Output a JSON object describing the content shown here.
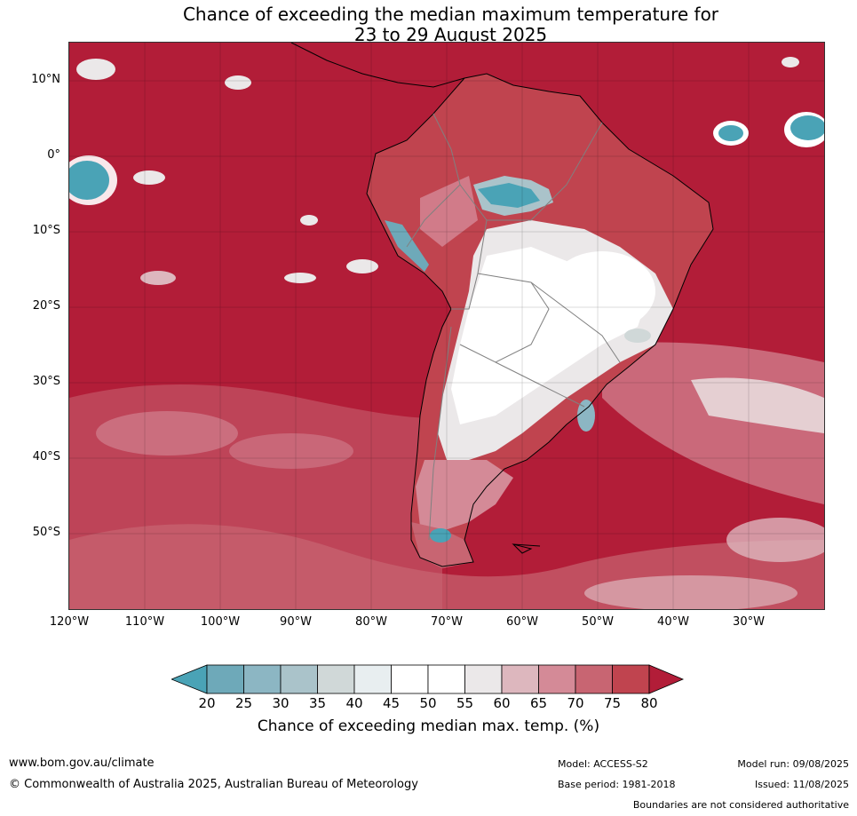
{
  "title": {
    "line1": "Chance of exceeding the median maximum temperature for",
    "line2": "23 to 29 August 2025"
  },
  "map": {
    "lat_labels": [
      "10°N",
      "0°",
      "10°S",
      "20°S",
      "30°S",
      "40°S",
      "50°S"
    ],
    "lon_labels": [
      "120°W",
      "110°W",
      "100°W",
      "90°W",
      "80°W",
      "70°W",
      "60°W",
      "50°W",
      "40°W",
      "30°W"
    ],
    "background_color": "#b21d38",
    "land_outline_color": "#000000",
    "border_color": "#808080"
  },
  "colorbar": {
    "ticks": [
      "20",
      "25",
      "30",
      "35",
      "40",
      "45",
      "50",
      "55",
      "60",
      "65",
      "70",
      "75",
      "80"
    ],
    "colors": [
      "#4aa3b6",
      "#6ea9b9",
      "#8cb6c3",
      "#aac3ca",
      "#d0d8d8",
      "#e8eef0",
      "#ffffff",
      "#ffffff",
      "#ebe8e9",
      "#ddb7be",
      "#d48a97",
      "#c86572",
      "#c0444f",
      "#b21d38"
    ],
    "label": "Chance of exceeding median max. temp. (%)"
  },
  "footer": {
    "website": "www.bom.gov.au/climate",
    "copyright": "© Commonwealth of Australia 2025, Australian Bureau of Meteorology",
    "model": "Model: ACCESS-S2",
    "base_period": "Base period: 1981-2018",
    "model_run": "Model run: 09/08/2025",
    "issued": "Issued: 11/08/2025",
    "boundaries_note": "Boundaries are not considered authoritative"
  }
}
